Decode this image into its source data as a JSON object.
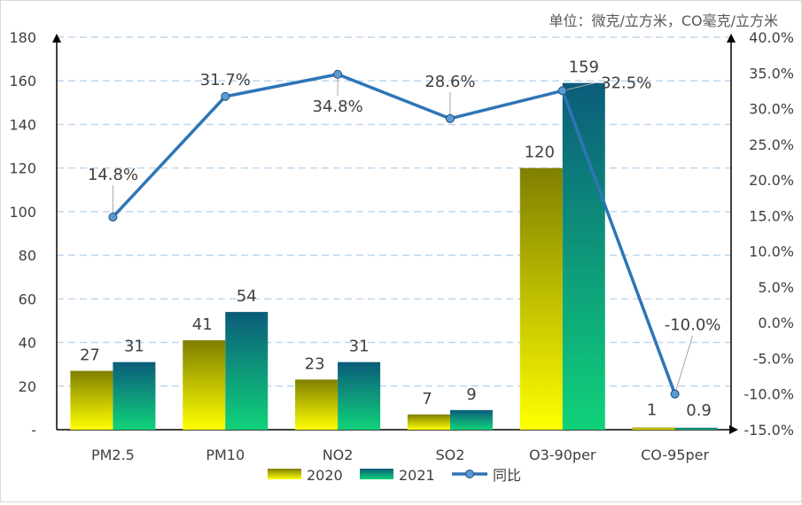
{
  "chart_data": {
    "type": "bar",
    "unit_note": "单位：微克/立方米，CO毫克/立方米",
    "categories": [
      "PM2.5",
      "PM10",
      "NO2",
      "SO2",
      "O3-90per",
      "CO-95per"
    ],
    "series": [
      {
        "name": "2020",
        "type": "bar",
        "values": [
          27,
          41,
          23,
          7,
          120,
          1
        ],
        "labels": [
          "27",
          "41",
          "23",
          "7",
          "120",
          "1"
        ]
      },
      {
        "name": "2021",
        "type": "bar",
        "values": [
          31,
          54,
          31,
          9,
          159,
          0.9
        ],
        "labels": [
          "31",
          "54",
          "31",
          "9",
          "159",
          "0.9"
        ]
      },
      {
        "name": "同比",
        "type": "line",
        "axis": "right",
        "values": [
          14.8,
          31.7,
          34.8,
          28.6,
          32.5,
          -10.0
        ],
        "labels": [
          "14.8%",
          "31.7%",
          "34.8%",
          "28.6%",
          "32.5%",
          "-10.0%"
        ]
      }
    ],
    "y_left": {
      "min": 0,
      "max": 180,
      "step": 20,
      "ticks": [
        "-",
        "20",
        "40",
        "60",
        "80",
        "100",
        "120",
        "140",
        "160",
        "180"
      ]
    },
    "y_right": {
      "min": -15,
      "max": 40,
      "step": 5,
      "ticks": [
        "-15.0%",
        "-10.0%",
        "-5.0%",
        "0.0%",
        "5.0%",
        "10.0%",
        "15.0%",
        "20.0%",
        "25.0%",
        "30.0%",
        "35.0%",
        "40.0%"
      ]
    },
    "legend": [
      "2020",
      "2021",
      "同比"
    ],
    "legend_position": "bottom",
    "grid": true,
    "colors": {
      "bar2020_top": "#7f7f00",
      "bar2020_bottom": "#ffff00",
      "bar2021_top": "#0b5c7a",
      "bar2021_bottom": "#10d27a",
      "line": "#2e75b6",
      "marker_fill": "#5b9bd5",
      "grid": "#bdd7ee"
    }
  }
}
